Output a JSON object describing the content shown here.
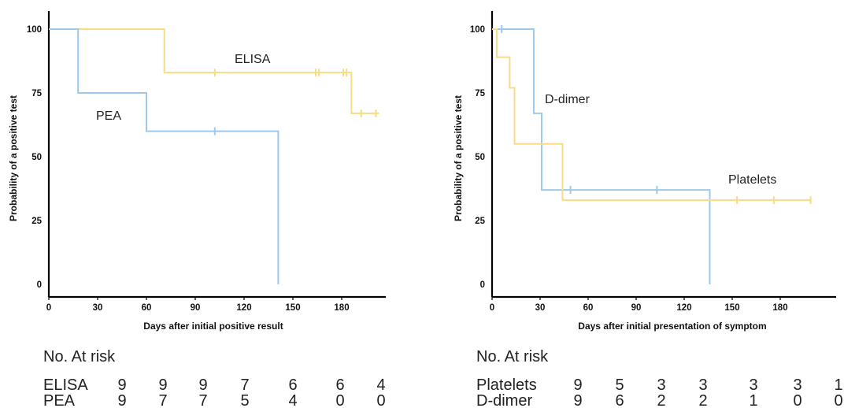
{
  "colors": {
    "blue": "#9ec9ea",
    "yellow": "#f7dc85",
    "axis": "#000000"
  },
  "chart_data": [
    {
      "type": "line",
      "step": true,
      "xlabel": "Days after initial positive result",
      "ylabel": "Probability of a positive test",
      "xticks": [
        0,
        30,
        60,
        90,
        120,
        150,
        180
      ],
      "yticks": [
        0,
        25,
        50,
        75,
        100
      ],
      "xlim": [
        0,
        212
      ],
      "ylim": [
        0,
        100
      ],
      "series": [
        {
          "name": "ELISA",
          "color": "#f7dc85",
          "points": [
            [
              0,
              100
            ],
            [
              71,
              100
            ],
            [
              71,
              83
            ],
            [
              186,
              83
            ],
            [
              186,
              67
            ],
            [
              203,
              67
            ]
          ],
          "censored": [
            [
              102,
              83
            ],
            [
              164,
              83
            ],
            [
              166,
              83
            ],
            [
              181,
              83
            ],
            [
              183,
              83
            ],
            [
              192,
              67
            ],
            [
              201,
              67
            ]
          ]
        },
        {
          "name": "PEA",
          "color": "#9ec9ea",
          "points": [
            [
              0,
              100
            ],
            [
              18,
              100
            ],
            [
              18,
              75
            ],
            [
              60,
              75
            ],
            [
              60,
              60
            ],
            [
              141,
              60
            ],
            [
              141,
              0
            ]
          ],
          "censored": [
            [
              102,
              60
            ]
          ]
        }
      ],
      "risk_table": {
        "title": "No. At risk",
        "rows": [
          {
            "label": "ELISA",
            "values": [
              "9",
              "9",
              "9",
              "7",
              "6",
              "6",
              "4"
            ]
          },
          {
            "label": "PEA",
            "values": [
              "9",
              "7",
              "7",
              "5",
              "4",
              "0",
              "0"
            ]
          }
        ]
      }
    },
    {
      "type": "line",
      "step": true,
      "xlabel": "Days after initial presentation of symptom",
      "ylabel": "Probability of a positive test",
      "xticks": [
        0,
        30,
        60,
        90,
        120,
        150,
        180
      ],
      "yticks": [
        0,
        25,
        50,
        75,
        100
      ],
      "xlim": [
        0,
        212
      ],
      "ylim": [
        0,
        100
      ],
      "series": [
        {
          "name": "D-dimer",
          "color": "#9ec9ea",
          "points": [
            [
              0,
              100
            ],
            [
              26,
              100
            ],
            [
              26,
              67
            ],
            [
              31,
              67
            ],
            [
              31,
              37
            ],
            [
              136,
              37
            ],
            [
              136,
              0
            ]
          ],
          "censored": [
            [
              6,
              100
            ],
            [
              49,
              37
            ],
            [
              103,
              37
            ]
          ]
        },
        {
          "name": "Platelets",
          "color": "#f7dc85",
          "points": [
            [
              0,
              100
            ],
            [
              3,
              100
            ],
            [
              3,
              89
            ],
            [
              11,
              89
            ],
            [
              11,
              77
            ],
            [
              14,
              77
            ],
            [
              14,
              55
            ],
            [
              44,
              55
            ],
            [
              44,
              33
            ],
            [
              199,
              33
            ]
          ],
          "censored": [
            [
              153,
              33
            ],
            [
              176,
              33
            ],
            [
              199,
              33
            ]
          ]
        }
      ],
      "risk_table": {
        "title": "No. At risk",
        "rows": [
          {
            "label": "Platelets",
            "values": [
              "9",
              "5",
              "3",
              "3",
              "3",
              "3",
              "1"
            ]
          },
          {
            "label": "D-dimer",
            "values": [
              "9",
              "6",
              "2",
              "2",
              "1",
              "0",
              "0"
            ]
          }
        ]
      }
    }
  ]
}
